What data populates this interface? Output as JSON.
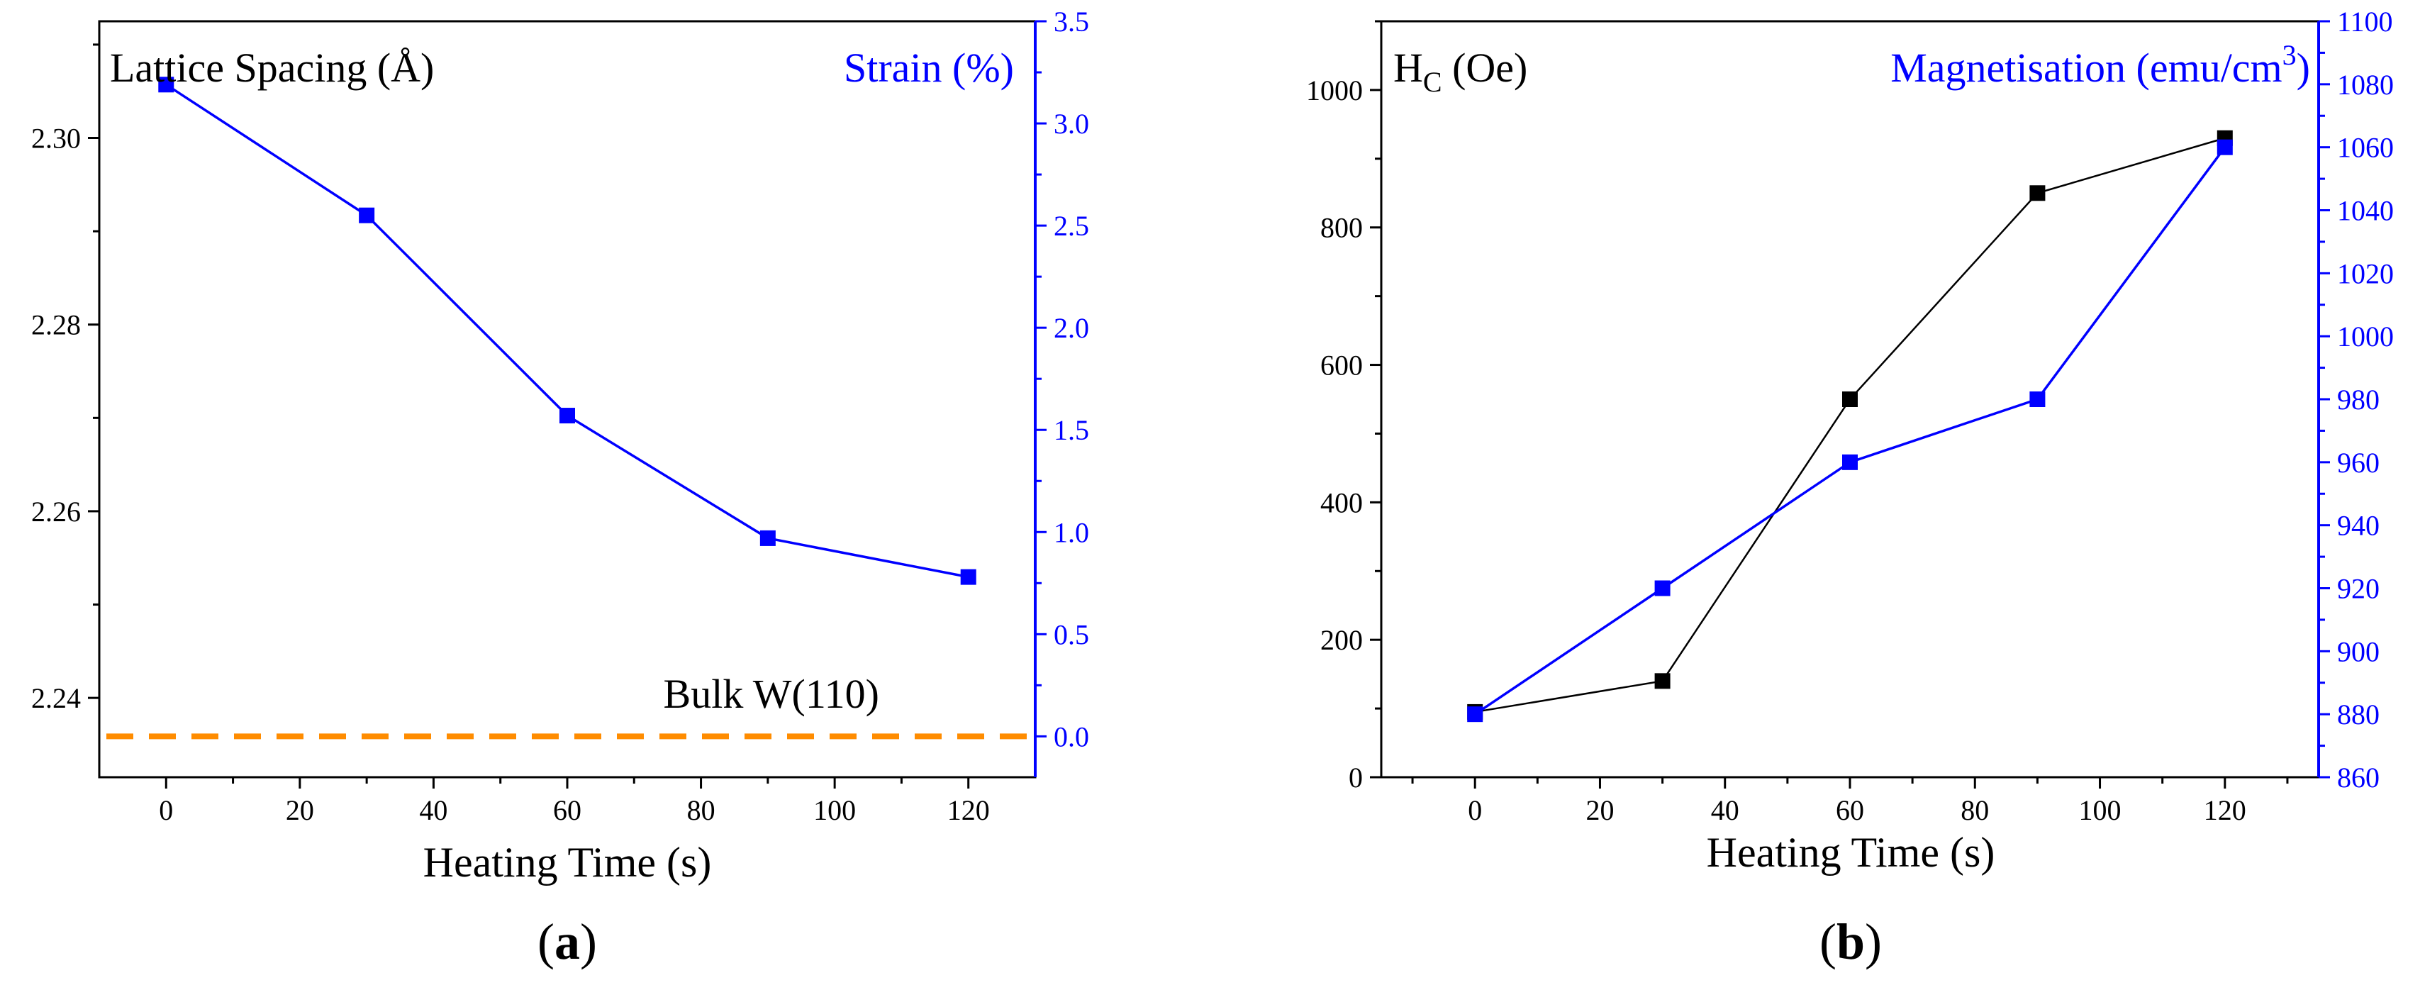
{
  "chart_data": [
    {
      "panel_label": "(a)",
      "type": "line",
      "xlabel": "Heating Time (s)",
      "x_ticks": [
        0,
        20,
        40,
        60,
        80,
        100,
        120
      ],
      "xlim": [
        -10,
        130
      ],
      "left_axis": {
        "label": "Lattice Spacing (Å)",
        "ylim": [
          2.2315,
          2.3125
        ],
        "ticks": [
          2.24,
          2.26,
          2.28,
          2.3
        ],
        "tick_labels": [
          "2.24",
          "2.26",
          "2.28",
          "2.30"
        ],
        "color": "#000000"
      },
      "right_axis": {
        "label": "Strain (%)",
        "ylim": [
          -0.2,
          3.5
        ],
        "ticks": [
          0.0,
          0.5,
          1.0,
          1.5,
          2.0,
          2.5,
          3.0,
          3.5
        ],
        "tick_labels": [
          "0.0",
          "0.5",
          "1.0",
          "1.5",
          "2.0",
          "2.5",
          "3.0",
          "3.5"
        ],
        "color": "#0000ff"
      },
      "series": [
        {
          "name": "Strain",
          "axis": "right",
          "color": "#0000ff",
          "x": [
            0,
            30,
            60,
            90,
            120
          ],
          "y": [
            3.19,
            2.55,
            1.57,
            0.97,
            0.78
          ]
        }
      ],
      "reference_line": {
        "label": "Bulk W(110)",
        "axis": "right",
        "y": 0.0,
        "color": "#ff8c00"
      }
    },
    {
      "panel_label": "(b)",
      "type": "line",
      "xlabel": "Heating Time (s)",
      "x_ticks": [
        0,
        20,
        40,
        60,
        80,
        100,
        120
      ],
      "xlim": [
        -15,
        135
      ],
      "left_axis": {
        "label_main": "H",
        "label_sub": "C",
        "label_rest": " (Oe)",
        "ylim": [
          0,
          1100
        ],
        "ticks": [
          0,
          200,
          400,
          600,
          800,
          1000
        ],
        "tick_labels": [
          "0",
          "200",
          "400",
          "600",
          "800",
          "1000"
        ],
        "color": "#000000"
      },
      "right_axis": {
        "label_main": "Magnetisation (emu/cm",
        "label_sup": "3",
        "label_end": ")",
        "ylim": [
          860,
          1100
        ],
        "ticks": [
          860,
          880,
          900,
          920,
          940,
          960,
          980,
          1000,
          1020,
          1040,
          1060,
          1080,
          1100
        ],
        "tick_labels": [
          "860",
          "880",
          "900",
          "920",
          "940",
          "960",
          "980",
          "1000",
          "1020",
          "1040",
          "1060",
          "1080",
          "1100"
        ],
        "color": "#0000ff"
      },
      "series": [
        {
          "name": "HC",
          "axis": "left",
          "color": "#000000",
          "x": [
            0,
            30,
            60,
            90,
            120
          ],
          "y": [
            95,
            140,
            550,
            850,
            930
          ]
        },
        {
          "name": "Magnetisation",
          "axis": "right",
          "color": "#0000ff",
          "x": [
            0,
            30,
            60,
            90,
            120
          ],
          "y": [
            880,
            920,
            960,
            980,
            1060
          ]
        }
      ]
    }
  ]
}
